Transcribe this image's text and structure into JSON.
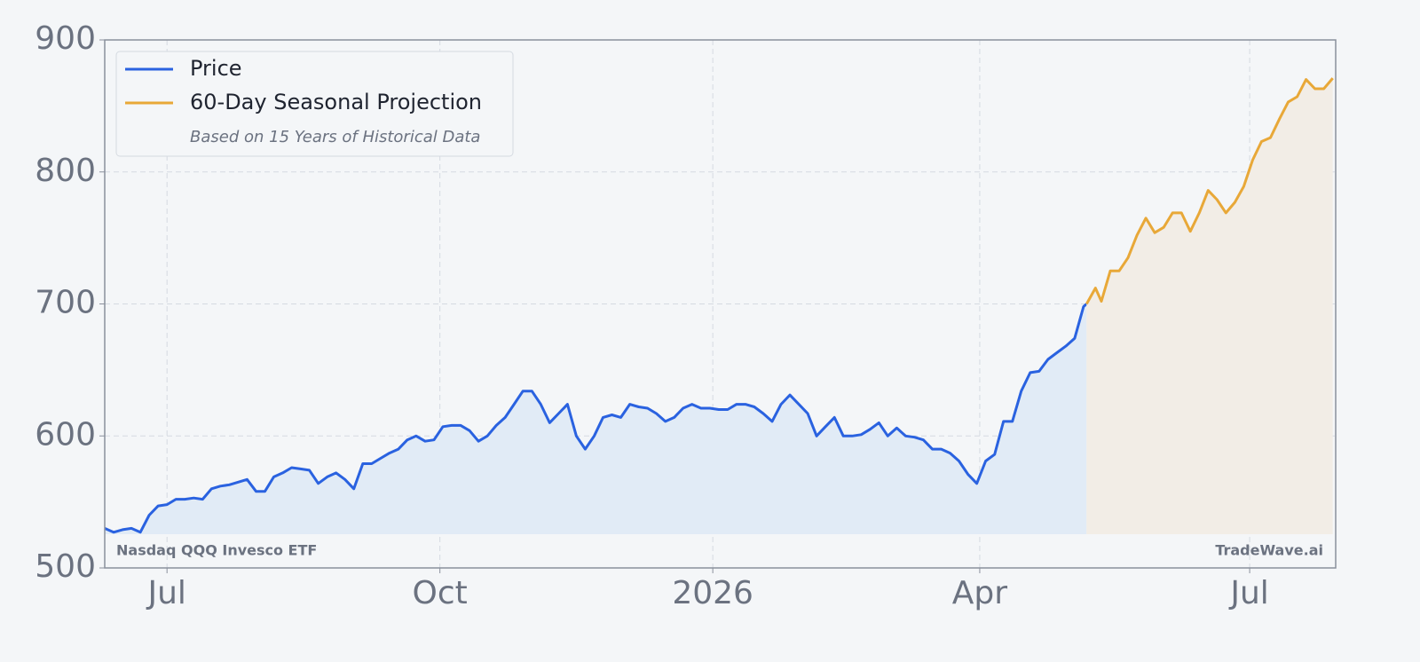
{
  "chart_data": {
    "type": "line",
    "xlim": [
      0,
      415
    ],
    "xticks": [
      {
        "value": 21,
        "label": "Jul"
      },
      {
        "value": 113,
        "label": "Oct"
      },
      {
        "value": 205,
        "label": "2026"
      },
      {
        "value": 295,
        "label": "Apr"
      },
      {
        "value": 386,
        "label": "Jul"
      }
    ],
    "ylim": [
      500,
      900
    ],
    "yticks": [
      500,
      600,
      700,
      800,
      900
    ],
    "grid": true,
    "legend": "upper left",
    "legend_note": "Based on 15 Years of Historical Data",
    "annotations": [
      "Nasdaq QQQ Invesco ETF",
      "TradeWave.ai"
    ],
    "series": [
      {
        "name": "Price",
        "color": "#2a62e0",
        "fill": "#e1ebf6",
        "x": [
          0,
          3,
          6,
          9,
          12,
          15,
          18,
          21,
          24,
          27,
          30,
          33,
          36,
          39,
          42,
          45,
          48,
          51,
          54,
          57,
          60,
          63,
          66,
          69,
          72,
          75,
          78,
          81,
          84,
          87,
          90,
          93,
          96,
          99,
          102,
          105,
          108,
          111,
          114,
          117,
          120,
          123,
          126,
          129,
          132,
          135,
          138,
          141,
          144,
          147,
          150,
          153,
          156,
          159,
          162,
          165,
          168,
          171,
          174,
          177,
          180,
          183,
          186,
          189,
          192,
          195,
          198,
          201,
          204,
          207,
          210,
          213,
          216,
          219,
          222,
          225,
          228,
          231,
          234,
          237,
          240,
          243,
          246,
          249,
          252,
          255,
          258,
          261,
          264,
          267,
          270,
          273,
          276,
          279,
          282,
          285,
          288,
          291,
          294,
          297,
          300,
          303,
          306,
          309,
          312,
          315,
          318,
          321,
          324,
          327,
          330,
          331
        ],
        "values": [
          530,
          527,
          529,
          530,
          527,
          540,
          547,
          548,
          552,
          552,
          553,
          552,
          560,
          562,
          563,
          565,
          567,
          558,
          558,
          569,
          572,
          576,
          575,
          574,
          564,
          569,
          572,
          567,
          560,
          579,
          579,
          583,
          587,
          590,
          597,
          600,
          596,
          597,
          607,
          608,
          608,
          604,
          596,
          600,
          608,
          614,
          624,
          634,
          634,
          624,
          610,
          617,
          624,
          600,
          590,
          600,
          614,
          616,
          614,
          624,
          622,
          621,
          617,
          611,
          614,
          621,
          624,
          621,
          621,
          620,
          620,
          624,
          624,
          622,
          617,
          611,
          624,
          631,
          624,
          617,
          600,
          607,
          614,
          600,
          600,
          601,
          605,
          610,
          600,
          606,
          600,
          599,
          597,
          590,
          590,
          587,
          581,
          571,
          564,
          581,
          586,
          611,
          611,
          634,
          648,
          649,
          658,
          663,
          668,
          674,
          698,
          700
        ]
      },
      {
        "name": "60-Day Seasonal Projection",
        "color": "#e8a838",
        "fill": "#f2ede6",
        "x": [
          331,
          334,
          336,
          339,
          342,
          345,
          348,
          351,
          354,
          357,
          360,
          363,
          366,
          369,
          372,
          375,
          378,
          381,
          384,
          387,
          390,
          393,
          396,
          399,
          402,
          405,
          408,
          411,
          414
        ],
        "values": [
          700,
          712,
          702,
          725,
          725,
          735,
          752,
          765,
          754,
          758,
          769,
          769,
          755,
          769,
          786,
          779,
          769,
          777,
          789,
          809,
          823,
          826,
          840,
          853,
          857,
          870,
          863,
          863,
          871
        ]
      }
    ]
  }
}
